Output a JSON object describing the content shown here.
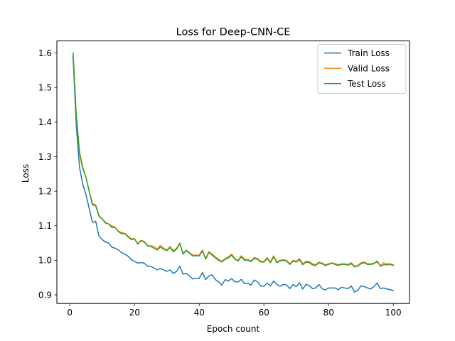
{
  "chart_data": {
    "type": "line",
    "title": "Loss for Deep-CNN-CE",
    "xlabel": "Epoch count",
    "ylabel": "Loss",
    "xlim": [
      -4,
      105
    ],
    "ylim": [
      0.875,
      1.635
    ],
    "xticks": [
      0,
      20,
      40,
      60,
      80,
      100
    ],
    "yticks": [
      0.9,
      1.0,
      1.1,
      1.2,
      1.3,
      1.4,
      1.5,
      1.6
    ],
    "ytick_labels": [
      "0.9",
      "1.0",
      "1.1",
      "1.2",
      "1.3",
      "1.4",
      "1.5",
      "1.6"
    ],
    "grid": false,
    "legend_position": "upper right",
    "series": [
      {
        "name": "Train Loss",
        "color": "#1f77b4",
        "x": [
          1,
          2,
          3,
          4,
          5,
          6,
          7,
          8,
          9,
          10,
          11,
          12,
          13,
          14,
          15,
          16,
          17,
          18,
          19,
          20,
          21,
          22,
          23,
          24,
          25,
          26,
          27,
          28,
          29,
          30,
          31,
          32,
          33,
          34,
          35,
          36,
          37,
          38,
          39,
          40,
          41,
          42,
          43,
          44,
          45,
          46,
          47,
          48,
          49,
          50,
          51,
          52,
          53,
          54,
          55,
          56,
          57,
          58,
          59,
          60,
          61,
          62,
          63,
          64,
          65,
          66,
          67,
          68,
          69,
          70,
          71,
          72,
          73,
          74,
          75,
          76,
          77,
          78,
          79,
          80,
          81,
          82,
          83,
          84,
          85,
          86,
          87,
          88,
          89,
          90,
          91,
          92,
          93,
          94,
          95,
          96,
          97,
          98,
          99,
          100
        ],
        "values": [
          1.59,
          1.39,
          1.27,
          1.22,
          1.19,
          1.15,
          1.11,
          1.113,
          1.07,
          1.06,
          1.053,
          1.05,
          1.038,
          1.035,
          1.03,
          1.022,
          1.018,
          1.012,
          1.002,
          0.997,
          0.992,
          0.993,
          0.992,
          0.983,
          0.982,
          0.978,
          0.972,
          0.977,
          0.972,
          0.968,
          0.972,
          0.962,
          0.968,
          0.983,
          0.96,
          0.962,
          0.955,
          0.946,
          0.948,
          0.948,
          0.965,
          0.944,
          0.955,
          0.958,
          0.944,
          0.938,
          0.928,
          0.944,
          0.94,
          0.947,
          0.938,
          0.937,
          0.945,
          0.933,
          0.934,
          0.928,
          0.943,
          0.938,
          0.926,
          0.925,
          0.934,
          0.926,
          0.94,
          0.93,
          0.925,
          0.93,
          0.929,
          0.918,
          0.93,
          0.924,
          0.935,
          0.917,
          0.93,
          0.927,
          0.918,
          0.92,
          0.93,
          0.918,
          0.914,
          0.92,
          0.92,
          0.92,
          0.915,
          0.922,
          0.92,
          0.918,
          0.926,
          0.908,
          0.913,
          0.926,
          0.924,
          0.92,
          0.917,
          0.924,
          0.934,
          0.918,
          0.92,
          0.917,
          0.915,
          0.912
        ]
      },
      {
        "name": "Valid Loss",
        "color": "#ff7f0e",
        "x": [
          1,
          2,
          3,
          4,
          5,
          6,
          7,
          8,
          9,
          10,
          11,
          12,
          13,
          14,
          15,
          16,
          17,
          18,
          19,
          20,
          21,
          22,
          23,
          24,
          25,
          26,
          27,
          28,
          29,
          30,
          31,
          32,
          33,
          34,
          35,
          36,
          37,
          38,
          39,
          40,
          41,
          42,
          43,
          44,
          45,
          46,
          47,
          48,
          49,
          50,
          51,
          52,
          53,
          54,
          55,
          56,
          57,
          58,
          59,
          60,
          61,
          62,
          63,
          64,
          65,
          66,
          67,
          68,
          69,
          70,
          71,
          72,
          73,
          74,
          75,
          76,
          77,
          78,
          79,
          80,
          81,
          82,
          83,
          84,
          85,
          86,
          87,
          88,
          89,
          90,
          91,
          92,
          93,
          94,
          95,
          96,
          97,
          98,
          99,
          100
        ],
        "values": [
          1.6,
          1.42,
          1.315,
          1.27,
          1.24,
          1.2,
          1.165,
          1.16,
          1.13,
          1.12,
          1.11,
          1.105,
          1.1,
          1.095,
          1.085,
          1.08,
          1.078,
          1.07,
          1.063,
          1.063,
          1.048,
          1.058,
          1.055,
          1.043,
          1.042,
          1.04,
          1.033,
          1.043,
          1.035,
          1.03,
          1.04,
          1.028,
          1.035,
          1.05,
          1.02,
          1.03,
          1.022,
          1.015,
          1.015,
          1.015,
          1.03,
          1.005,
          1.025,
          1.018,
          1.01,
          1.003,
          0.997,
          1.005,
          1.01,
          1.018,
          1.005,
          1.0,
          1.013,
          1.003,
          1.003,
          0.998,
          1.008,
          1.005,
          0.997,
          0.997,
          1.008,
          0.995,
          1.013,
          0.995,
          1.0,
          1.002,
          1.0,
          0.99,
          1.0,
          0.997,
          1.005,
          0.99,
          0.997,
          0.997,
          0.99,
          0.987,
          0.995,
          0.992,
          0.987,
          0.99,
          0.993,
          0.99,
          0.987,
          0.99,
          0.99,
          0.988,
          0.993,
          0.983,
          0.985,
          0.993,
          0.995,
          0.99,
          0.99,
          0.992,
          0.995,
          0.985,
          0.993,
          0.99,
          0.99,
          0.987
        ]
      },
      {
        "name": "Test Loss",
        "color": "#2ca02c",
        "x": [
          1,
          2,
          3,
          4,
          5,
          6,
          7,
          8,
          9,
          10,
          11,
          12,
          13,
          14,
          15,
          16,
          17,
          18,
          19,
          20,
          21,
          22,
          23,
          24,
          25,
          26,
          27,
          28,
          29,
          30,
          31,
          32,
          33,
          34,
          35,
          36,
          37,
          38,
          39,
          40,
          41,
          42,
          43,
          44,
          45,
          46,
          47,
          48,
          49,
          50,
          51,
          52,
          53,
          54,
          55,
          56,
          57,
          58,
          59,
          60,
          61,
          62,
          63,
          64,
          65,
          66,
          67,
          68,
          69,
          70,
          71,
          72,
          73,
          74,
          75,
          76,
          77,
          78,
          79,
          80,
          81,
          82,
          83,
          84,
          85,
          86,
          87,
          88,
          89,
          90,
          91,
          92,
          93,
          94,
          95,
          96,
          97,
          98,
          99,
          100
        ],
        "values": [
          1.6,
          1.42,
          1.31,
          1.265,
          1.24,
          1.2,
          1.16,
          1.158,
          1.128,
          1.12,
          1.108,
          1.105,
          1.095,
          1.095,
          1.083,
          1.077,
          1.077,
          1.068,
          1.06,
          1.062,
          1.047,
          1.057,
          1.053,
          1.042,
          1.04,
          1.035,
          1.03,
          1.038,
          1.032,
          1.028,
          1.037,
          1.025,
          1.032,
          1.048,
          1.018,
          1.028,
          1.02,
          1.013,
          1.013,
          1.013,
          1.027,
          1.003,
          1.023,
          1.015,
          1.007,
          1.0,
          0.995,
          1.003,
          1.007,
          1.015,
          1.003,
          0.998,
          1.01,
          1.0,
          1.0,
          0.996,
          1.005,
          1.003,
          0.995,
          0.995,
          1.005,
          0.993,
          1.01,
          0.993,
          0.998,
          1.0,
          0.998,
          0.988,
          0.998,
          0.995,
          1.002,
          0.987,
          0.995,
          0.993,
          0.987,
          0.985,
          0.993,
          0.99,
          0.985,
          0.988,
          0.992,
          0.988,
          0.985,
          0.988,
          0.988,
          0.986,
          0.99,
          0.981,
          0.983,
          0.99,
          0.993,
          0.988,
          0.988,
          0.99,
          0.998,
          0.983,
          0.987,
          0.987,
          0.988,
          0.985
        ]
      }
    ]
  }
}
